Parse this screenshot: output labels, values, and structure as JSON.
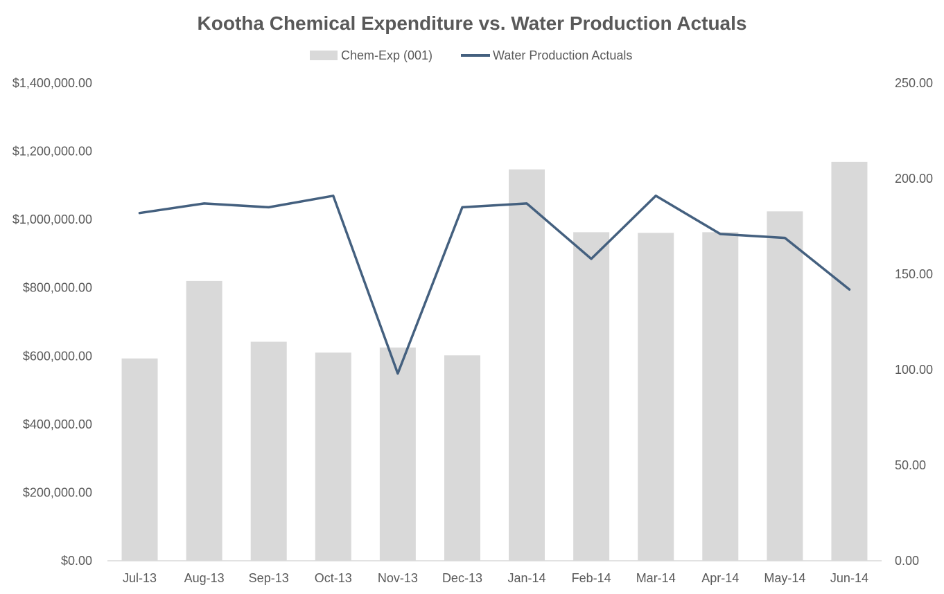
{
  "chart_data": {
    "type": "bar",
    "title": "Kootha Chemical Expenditure vs. Water Production Actuals",
    "categories": [
      "Jul-13",
      "Aug-13",
      "Sep-13",
      "Oct-13",
      "Nov-13",
      "Dec-13",
      "Jan-14",
      "Feb-14",
      "Mar-14",
      "Apr-14",
      "May-14",
      "Jun-14"
    ],
    "series": [
      {
        "name": "Chem-Exp (001)",
        "type": "bar",
        "axis": "left",
        "color": "#d9d9d9",
        "values": [
          593000,
          820000,
          642000,
          610000,
          625000,
          602000,
          1147000,
          963000,
          961000,
          963000,
          1024000,
          1169000
        ]
      },
      {
        "name": "Water Production Actuals",
        "type": "line",
        "axis": "right",
        "color": "#44607f",
        "values": [
          182,
          187,
          185,
          191,
          98,
          185,
          187,
          158,
          191,
          171,
          169,
          142
        ]
      }
    ],
    "left_axis": {
      "min": 0,
      "max": 1400000,
      "step": 200000,
      "tick_labels": [
        "$0.00",
        "$200,000.00",
        "$400,000.00",
        "$600,000.00",
        "$800,000.00",
        "$1,000,000.00",
        "$1,200,000.00",
        "$1,400,000.00"
      ]
    },
    "right_axis": {
      "min": 0,
      "max": 250,
      "step": 50,
      "tick_labels": [
        "0.00",
        "50.00",
        "100.00",
        "150.00",
        "200.00",
        "250.00"
      ]
    },
    "xlabel": "",
    "ylabel": "",
    "grid": false,
    "legend_position": "top-center"
  }
}
